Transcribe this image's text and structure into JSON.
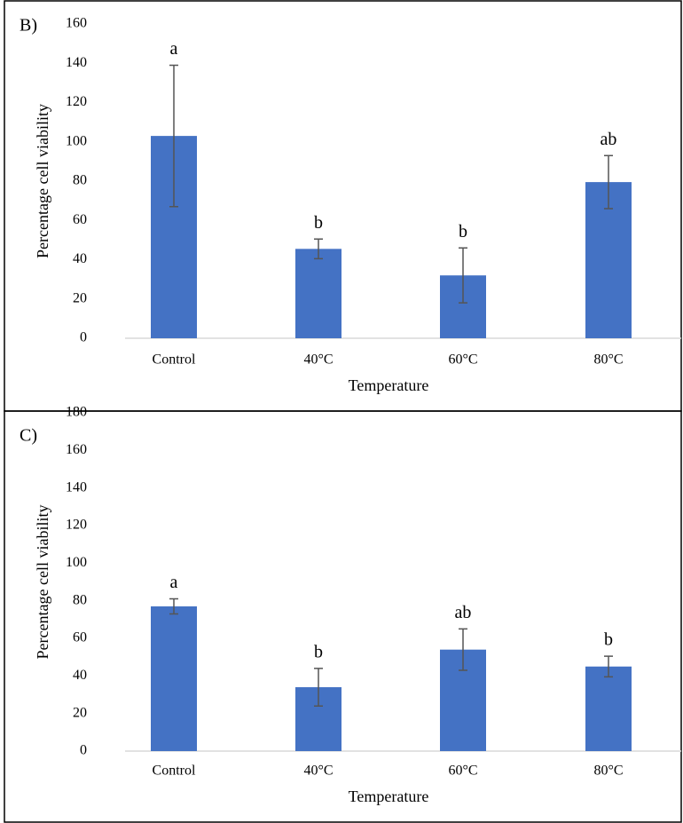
{
  "chart_data": [
    {
      "type": "bar",
      "label": "B)",
      "x_label": "Temperature",
      "y_label": "Percentage cell viability",
      "categories": [
        "Control",
        "40°C",
        "60°C",
        "80°C"
      ],
      "values": [
        103,
        45.5,
        32,
        79.5
      ],
      "errors": [
        36,
        5,
        14,
        13.5
      ],
      "annotations": [
        "a",
        "b",
        "b",
        "ab"
      ],
      "color": "#4472c4",
      "ylim": [
        0,
        160
      ],
      "yticks": [
        0,
        20,
        40,
        60,
        80,
        100,
        120,
        140,
        160
      ]
    },
    {
      "type": "bar",
      "label": "C)",
      "x_label": "Temperature",
      "y_label": "Percentage cell viability",
      "categories": [
        "Control",
        "40°C",
        "60°C",
        "80°C"
      ],
      "values": [
        77,
        34,
        54,
        45
      ],
      "errors": [
        4,
        10,
        11,
        5.5
      ],
      "annotations": [
        "a",
        "b",
        "ab",
        "b"
      ],
      "color": "#4472c4",
      "ylim": [
        0,
        180
      ],
      "yticks": [
        0,
        20,
        40,
        60,
        80,
        100,
        120,
        140,
        160,
        180
      ]
    }
  ]
}
